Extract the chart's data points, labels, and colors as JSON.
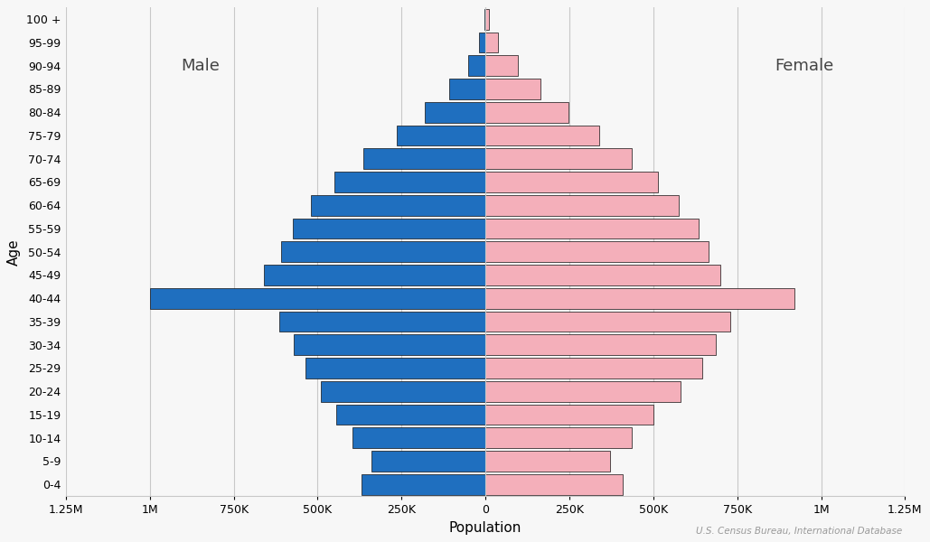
{
  "xlabel": "Population",
  "ylabel": "Age",
  "age_groups": [
    "0-4",
    "5-9",
    "10-14",
    "15-19",
    "20-24",
    "25-29",
    "30-34",
    "35-39",
    "40-44",
    "45-49",
    "50-54",
    "55-59",
    "60-64",
    "65-69",
    "70-74",
    "75-79",
    "80-84",
    "85-89",
    "90-94",
    "95-99",
    "100 +"
  ],
  "male": [
    370000,
    340000,
    395000,
    445000,
    490000,
    535000,
    570000,
    615000,
    1000000,
    660000,
    610000,
    575000,
    520000,
    450000,
    365000,
    265000,
    180000,
    108000,
    52000,
    18000,
    3000
  ],
  "female": [
    410000,
    370000,
    435000,
    500000,
    580000,
    645000,
    685000,
    730000,
    920000,
    700000,
    665000,
    635000,
    575000,
    515000,
    435000,
    340000,
    248000,
    165000,
    97000,
    38000,
    11000
  ],
  "male_color": "#1F6FBF",
  "female_color": "#F4AFBA",
  "edge_color": "#111111",
  "grid_color": "#c8c8c8",
  "background_color": "#f7f7f7",
  "xlim": 1250000,
  "male_label": "Male",
  "female_label": "Female",
  "source_text": "U.S. Census Bureau, International Database",
  "tick_values": [
    -1250000,
    -1000000,
    -750000,
    -500000,
    -250000,
    0,
    250000,
    500000,
    750000,
    1000000,
    1250000
  ],
  "tick_labels": [
    "1.25M",
    "1M",
    "750K",
    "500K",
    "250K",
    "0",
    "250K",
    "500K",
    "750K",
    "1M",
    "1.25M"
  ]
}
